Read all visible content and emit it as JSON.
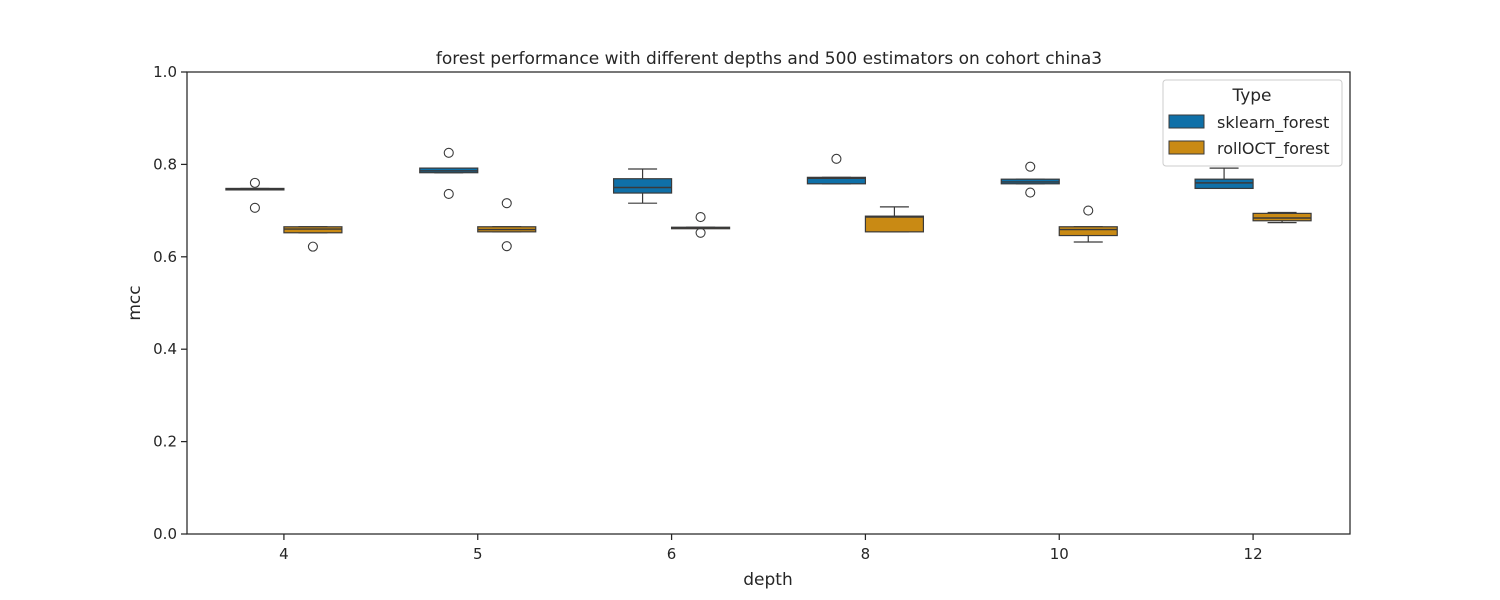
{
  "chart_data": {
    "type": "box",
    "title": "forest performance with different depths and 500 estimators on cohort china3",
    "xlabel": "depth",
    "ylabel": "mcc",
    "ylim": [
      0.0,
      1.0
    ],
    "yticks": [
      "0.0",
      "0.2",
      "0.4",
      "0.6",
      "0.8",
      "1.0"
    ],
    "categories": [
      "4",
      "5",
      "6",
      "8",
      "10",
      "12"
    ],
    "legend": {
      "title": "Type",
      "position": "top-right"
    },
    "grid": false,
    "series": [
      {
        "name": "sklearn_forest",
        "color": "#0f70a8",
        "boxes": [
          {
            "whislo": 0.746,
            "q1": 0.746,
            "med": 0.747,
            "q3": 0.748,
            "whishi": 0.748,
            "fliers": [
              0.76,
              0.706
            ]
          },
          {
            "whislo": 0.782,
            "q1": 0.782,
            "med": 0.786,
            "q3": 0.792,
            "whishi": 0.792,
            "fliers": [
              0.825,
              0.736
            ]
          },
          {
            "whislo": 0.716,
            "q1": 0.738,
            "med": 0.75,
            "q3": 0.769,
            "whishi": 0.79,
            "fliers": []
          },
          {
            "whislo": 0.758,
            "q1": 0.758,
            "med": 0.77,
            "q3": 0.772,
            "whishi": 0.772,
            "fliers": [
              0.812
            ]
          },
          {
            "whislo": 0.758,
            "q1": 0.758,
            "med": 0.762,
            "q3": 0.768,
            "whishi": 0.768,
            "fliers": [
              0.795,
              0.739
            ]
          },
          {
            "whislo": 0.748,
            "q1": 0.748,
            "med": 0.76,
            "q3": 0.768,
            "whishi": 0.792,
            "fliers": []
          }
        ]
      },
      {
        "name": "rollOCT_forest",
        "color": "#c98a14",
        "boxes": [
          {
            "whislo": 0.652,
            "q1": 0.652,
            "med": 0.66,
            "q3": 0.665,
            "whishi": 0.665,
            "fliers": [
              0.622
            ]
          },
          {
            "whislo": 0.654,
            "q1": 0.654,
            "med": 0.659,
            "q3": 0.665,
            "whishi": 0.665,
            "fliers": [
              0.716,
              0.623
            ]
          },
          {
            "whislo": 0.662,
            "q1": 0.662,
            "med": 0.663,
            "q3": 0.664,
            "whishi": 0.664,
            "fliers": [
              0.686,
              0.652
            ]
          },
          {
            "whislo": 0.654,
            "q1": 0.654,
            "med": 0.686,
            "q3": 0.688,
            "whishi": 0.708,
            "fliers": []
          },
          {
            "whislo": 0.632,
            "q1": 0.646,
            "med": 0.659,
            "q3": 0.665,
            "whishi": 0.665,
            "fliers": [
              0.7
            ]
          },
          {
            "whislo": 0.674,
            "q1": 0.678,
            "med": 0.684,
            "q3": 0.694,
            "whishi": 0.696,
            "fliers": []
          }
        ]
      }
    ]
  }
}
